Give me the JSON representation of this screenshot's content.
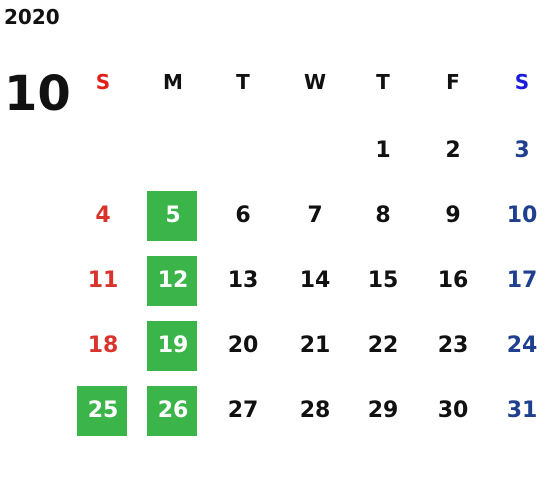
{
  "year": "2020",
  "month": "10",
  "weekdays": [
    "S",
    "M",
    "T",
    "W",
    "T",
    "F",
    "S"
  ],
  "weeks": [
    [
      null,
      null,
      null,
      null,
      1,
      2,
      3
    ],
    [
      4,
      5,
      6,
      7,
      8,
      9,
      10
    ],
    [
      11,
      12,
      13,
      14,
      15,
      16,
      17
    ],
    [
      18,
      19,
      20,
      21,
      22,
      23,
      24
    ],
    [
      25,
      26,
      27,
      28,
      29,
      30,
      31
    ]
  ],
  "highlighted": [
    5,
    12,
    19,
    25,
    26
  ],
  "highlight_color": "#3bb54a",
  "sunday_header_color": "#e0201a",
  "saturday_header_color": "#1a1adc",
  "sunday_color": "#d9342b",
  "saturday_color": "#1f3f8f"
}
